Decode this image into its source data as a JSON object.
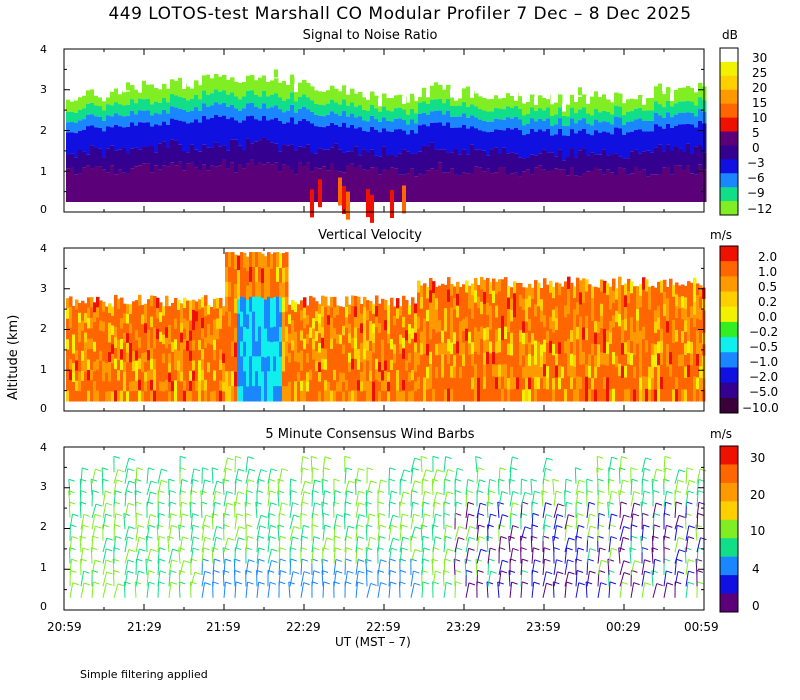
{
  "title": "449 LOTOS-test Marshall CO Modular Profiler  7 Dec –  8 Dec 2025",
  "y_axis_label": "Altitude (km)",
  "x_axis_label": "UT  (MST – 7)",
  "footnote": "Simple filtering applied",
  "x_ticks": [
    "20:59",
    "21:29",
    "21:59",
    "22:29",
    "22:59",
    "23:29",
    "23:59",
    "00:29",
    "00:59"
  ],
  "chart_data": [
    {
      "type": "heatmap",
      "title": "Signal to Noise Ratio",
      "unit": "dB",
      "ylabel": "Altitude (km)",
      "ylim": [
        0,
        4
      ],
      "y_ticks": [
        "0",
        "1",
        "2",
        "3",
        "4"
      ],
      "colorbar_labels": [
        "30",
        "25",
        "20",
        "15",
        "10",
        "5",
        "0",
        "−3",
        "−6",
        "−9",
        "−12"
      ],
      "colorbar_colors": [
        "#ffffff",
        "#f2f200",
        "#ffcf00",
        "#ff9900",
        "#ff6600",
        "#ee1100",
        "#5c007a",
        "#33008f",
        "#1010e0",
        "#1a86ff",
        "#12dd88",
        "#80ee22"
      ]
    },
    {
      "type": "heatmap",
      "title": "Vertical Velocity",
      "unit": "m/s",
      "ylabel": "Altitude (km)",
      "ylim": [
        0,
        4
      ],
      "y_ticks": [
        "0",
        "1",
        "2",
        "3",
        "4"
      ],
      "colorbar_labels": [
        "2.0",
        "1.0",
        "0.5",
        "0.2",
        "0.0",
        "−0.2",
        "−0.5",
        "−1.0",
        "−2.0",
        "−5.0",
        "−10.0"
      ],
      "colorbar_colors": [
        "#ee1100",
        "#ff6600",
        "#ff9900",
        "#ffcf00",
        "#f2f200",
        "#33ee22",
        "#10eeee",
        "#1a86ff",
        "#1010e0",
        "#33008f",
        "#3a003a"
      ]
    },
    {
      "type": "scatter",
      "title": "5 Minute Consensus Wind Barbs",
      "unit": "m/s",
      "ylabel": "Altitude (km)",
      "ylim": [
        0,
        4
      ],
      "y_ticks": [
        "0",
        "1",
        "2",
        "3",
        "4"
      ],
      "colorbar_labels": [
        "30",
        "20",
        "10",
        "4",
        "0"
      ],
      "colorbar_colors": [
        "#ee1100",
        "#ff6600",
        "#ff9900",
        "#ffcf00",
        "#80ee22",
        "#12dd88",
        "#1a86ff",
        "#1010e0",
        "#5c007a"
      ]
    }
  ]
}
